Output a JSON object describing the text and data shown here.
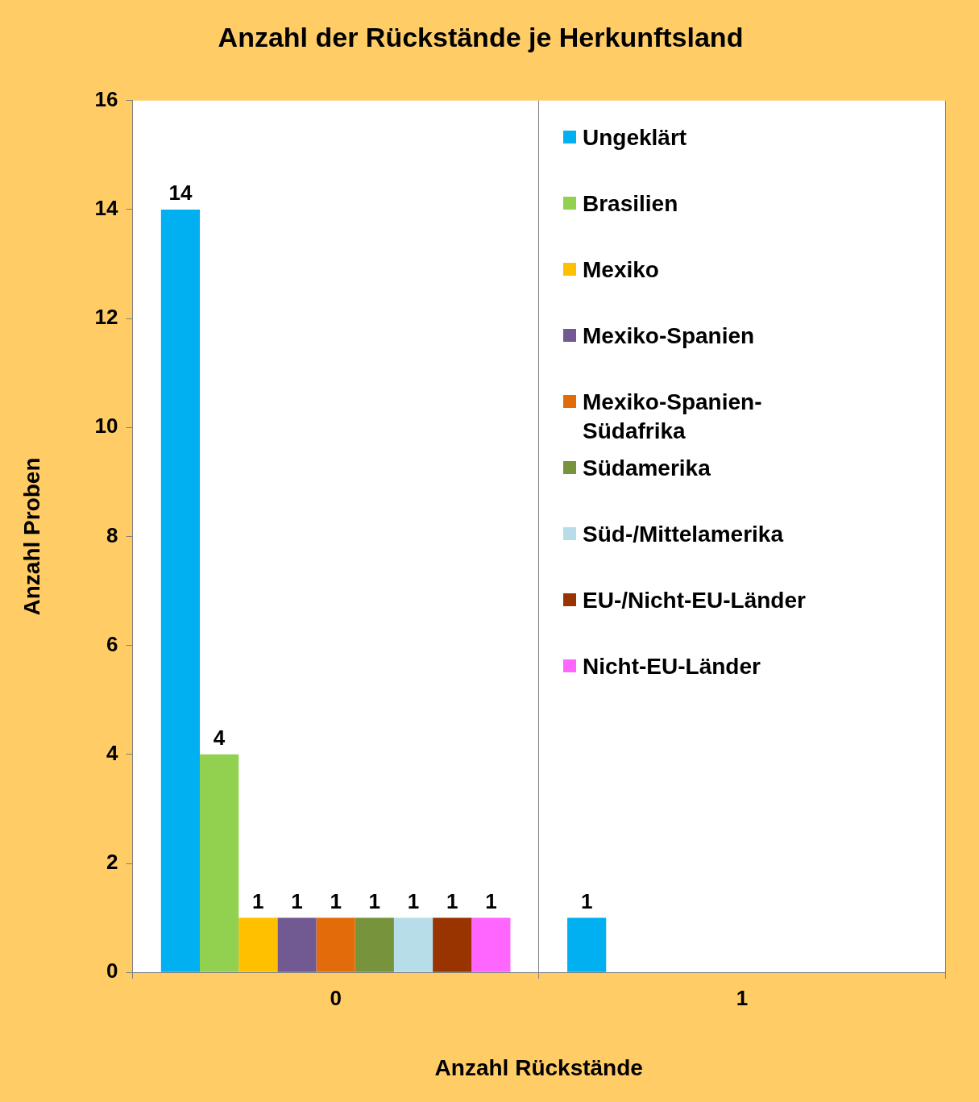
{
  "chart_data": {
    "type": "bar",
    "title": "Anzahl der Rückstände je Herkunftsland",
    "xlabel": "Anzahl Rückstände",
    "ylabel": "Anzahl Proben",
    "categories": [
      "0",
      "1"
    ],
    "series": [
      {
        "name": "Ungeklärt",
        "color": "#00b0f0",
        "values": [
          14,
          1
        ]
      },
      {
        "name": "Brasilien",
        "color": "#92d050",
        "values": [
          4,
          null
        ]
      },
      {
        "name": "Mexiko",
        "color": "#ffc000",
        "values": [
          1,
          null
        ]
      },
      {
        "name": "Mexiko-Spanien",
        "color": "#715a92",
        "values": [
          1,
          null
        ]
      },
      {
        "name": "Mexiko-Spanien-Südafrika",
        "color": "#e36c0a",
        "values": [
          1,
          null
        ]
      },
      {
        "name": "Südamerika",
        "color": "#77933c",
        "values": [
          1,
          null
        ]
      },
      {
        "name": "Süd-/Mittelamerika",
        "color": "#b7dee8",
        "values": [
          1,
          null
        ]
      },
      {
        "name": "EU-/Nicht-EU-Länder",
        "color": "#993300",
        "values": [
          1,
          null
        ]
      },
      {
        "name": "Nicht-EU-Länder",
        "color": "#ff66ff",
        "values": [
          1,
          null
        ]
      }
    ],
    "ylim": [
      0,
      16
    ],
    "yticks": [
      0,
      2,
      4,
      6,
      8,
      10,
      12,
      14,
      16
    ],
    "grid": "x",
    "legend": "right",
    "data_labels": true
  }
}
